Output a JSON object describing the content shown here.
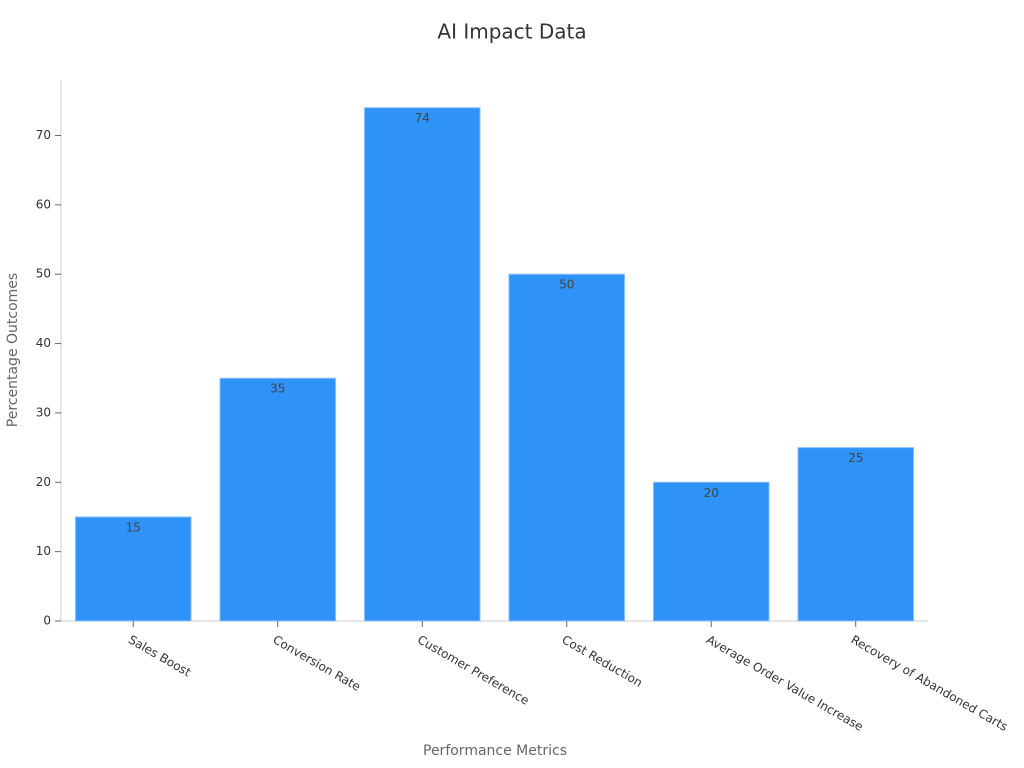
{
  "chart_data": {
    "type": "bar",
    "title": "AI Impact Data",
    "x_label": "Performance Metrics",
    "y_label": "Percentage Outcomes",
    "categories": [
      "Sales Boost",
      "Conversion Rate",
      "Customer Preference",
      "Cost Reduction",
      "Average Order Value Increase",
      "Recovery of Abandoned Carts"
    ],
    "values": [
      15,
      35,
      74,
      50,
      20,
      25
    ],
    "color": "#2f92f7",
    "ylim": [
      0,
      78
    ],
    "yticks": [
      0,
      10,
      20,
      30,
      40,
      50,
      60,
      70
    ],
    "grid": false
  }
}
